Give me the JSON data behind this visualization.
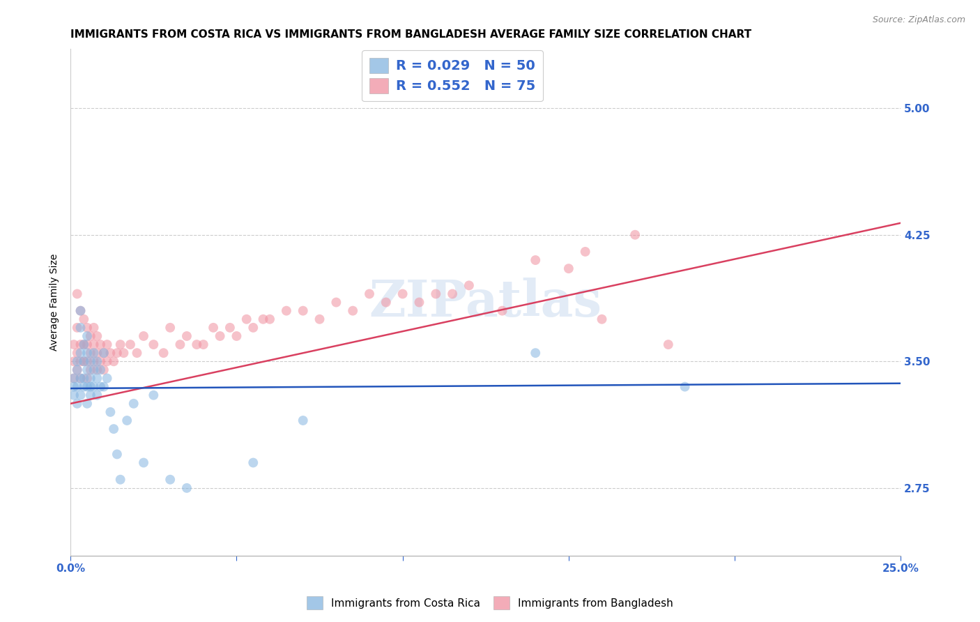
{
  "title": "IMMIGRANTS FROM COSTA RICA VS IMMIGRANTS FROM BANGLADESH AVERAGE FAMILY SIZE CORRELATION CHART",
  "source": "Source: ZipAtlas.com",
  "ylabel": "Average Family Size",
  "watermark": "ZIPatlas",
  "xlim": [
    0.0,
    0.25
  ],
  "ylim": [
    2.35,
    5.35
  ],
  "yticks": [
    2.75,
    3.5,
    4.25,
    5.0
  ],
  "ytick_labels": [
    "2.75",
    "3.50",
    "4.25",
    "5.00"
  ],
  "xticks": [
    0.0,
    0.05,
    0.1,
    0.15,
    0.2,
    0.25
  ],
  "xticklabels": [
    "0.0%",
    "",
    "",
    "",
    "",
    "25.0%"
  ],
  "costa_rica_color": "#85b5e0",
  "bangladesh_color": "#f090a0",
  "trendline_cr_color": "#2255bb",
  "trendline_bd_color": "#d94060",
  "legend_r_cr": "0.029",
  "legend_n_cr": "50",
  "legend_r_bd": "0.552",
  "legend_n_bd": "75",
  "axis_color": "#3366cc",
  "grid_color": "#cccccc",
  "background_color": "#ffffff",
  "title_fontsize": 11,
  "label_fontsize": 10,
  "tick_fontsize": 11,
  "marker_size": 100,
  "marker_alpha": 0.55,
  "costa_rica_x": [
    0.001,
    0.001,
    0.001,
    0.002,
    0.002,
    0.002,
    0.002,
    0.003,
    0.003,
    0.003,
    0.003,
    0.003,
    0.004,
    0.004,
    0.004,
    0.004,
    0.005,
    0.005,
    0.005,
    0.005,
    0.005,
    0.006,
    0.006,
    0.006,
    0.006,
    0.007,
    0.007,
    0.007,
    0.008,
    0.008,
    0.008,
    0.009,
    0.009,
    0.01,
    0.01,
    0.011,
    0.012,
    0.013,
    0.014,
    0.015,
    0.017,
    0.019,
    0.022,
    0.025,
    0.03,
    0.035,
    0.055,
    0.07,
    0.14,
    0.185
  ],
  "costa_rica_y": [
    3.4,
    3.35,
    3.3,
    3.5,
    3.45,
    3.35,
    3.25,
    3.8,
    3.7,
    3.55,
    3.4,
    3.3,
    3.6,
    3.5,
    3.4,
    3.35,
    3.65,
    3.55,
    3.45,
    3.35,
    3.25,
    3.5,
    3.4,
    3.35,
    3.3,
    3.55,
    3.45,
    3.35,
    3.5,
    3.4,
    3.3,
    3.45,
    3.35,
    3.55,
    3.35,
    3.4,
    3.2,
    3.1,
    2.95,
    2.8,
    3.15,
    3.25,
    2.9,
    3.3,
    2.8,
    2.75,
    2.9,
    3.15,
    3.55,
    3.35
  ],
  "bangladesh_x": [
    0.001,
    0.001,
    0.001,
    0.002,
    0.002,
    0.002,
    0.002,
    0.003,
    0.003,
    0.003,
    0.003,
    0.004,
    0.004,
    0.004,
    0.005,
    0.005,
    0.005,
    0.005,
    0.006,
    0.006,
    0.006,
    0.007,
    0.007,
    0.007,
    0.008,
    0.008,
    0.008,
    0.009,
    0.009,
    0.01,
    0.01,
    0.011,
    0.011,
    0.012,
    0.013,
    0.014,
    0.015,
    0.016,
    0.018,
    0.02,
    0.022,
    0.025,
    0.028,
    0.03,
    0.033,
    0.035,
    0.038,
    0.04,
    0.043,
    0.045,
    0.048,
    0.05,
    0.053,
    0.055,
    0.058,
    0.06,
    0.065,
    0.07,
    0.075,
    0.08,
    0.085,
    0.09,
    0.095,
    0.1,
    0.105,
    0.11,
    0.115,
    0.12,
    0.13,
    0.14,
    0.15,
    0.155,
    0.16,
    0.17,
    0.18
  ],
  "bangladesh_y": [
    3.4,
    3.5,
    3.6,
    3.9,
    3.7,
    3.55,
    3.45,
    3.6,
    3.8,
    3.5,
    3.4,
    3.75,
    3.6,
    3.5,
    3.7,
    3.6,
    3.5,
    3.4,
    3.65,
    3.55,
    3.45,
    3.7,
    3.6,
    3.5,
    3.65,
    3.55,
    3.45,
    3.6,
    3.5,
    3.55,
    3.45,
    3.6,
    3.5,
    3.55,
    3.5,
    3.55,
    3.6,
    3.55,
    3.6,
    3.55,
    3.65,
    3.6,
    3.55,
    3.7,
    3.6,
    3.65,
    3.6,
    3.6,
    3.7,
    3.65,
    3.7,
    3.65,
    3.75,
    3.7,
    3.75,
    3.75,
    3.8,
    3.8,
    3.75,
    3.85,
    3.8,
    3.9,
    3.85,
    3.9,
    3.85,
    3.9,
    3.9,
    3.95,
    3.8,
    4.1,
    4.05,
    4.15,
    3.75,
    4.25,
    3.6
  ],
  "bd_trendline_x0": 0.0,
  "bd_trendline_y0": 3.25,
  "bd_trendline_x1": 0.25,
  "bd_trendline_y1": 4.32,
  "cr_trendline_x0": 0.0,
  "cr_trendline_y0": 3.34,
  "cr_trendline_x1": 0.25,
  "cr_trendline_y1": 3.37
}
